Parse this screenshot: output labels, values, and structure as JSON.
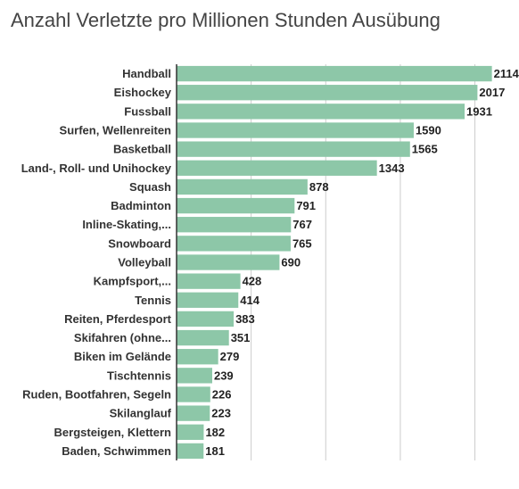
{
  "chart_data": {
    "type": "bar",
    "orientation": "horizontal",
    "title": "Anzahl Verletzte pro Millionen Stunden Ausübung",
    "xlabel": "",
    "ylabel": "",
    "xlim": [
      0,
      2200
    ],
    "grid": true,
    "bar_color": "#8dc7a8",
    "categories": [
      "Handball",
      "Eishockey",
      "Fussball",
      "Surfen, Wellenreiten",
      "Basketball",
      "Land-, Roll- und Unihockey",
      "Squash",
      "Badminton",
      "Inline-Skating,...",
      "Snowboard",
      "Volleyball",
      "Kampfsport,...",
      "Tennis",
      "Reiten, Pferdesport",
      "Skifahren (ohne...",
      "Biken im Gelände",
      "Tischtennis",
      "Ruden, Bootfahren, Segeln",
      "Skilanglauf",
      "Bergsteigen, Klettern",
      "Baden, Schwimmen"
    ],
    "values": [
      2114,
      2017,
      1931,
      1590,
      1565,
      1343,
      878,
      791,
      767,
      765,
      690,
      428,
      414,
      383,
      351,
      279,
      239,
      226,
      223,
      182,
      181
    ]
  }
}
